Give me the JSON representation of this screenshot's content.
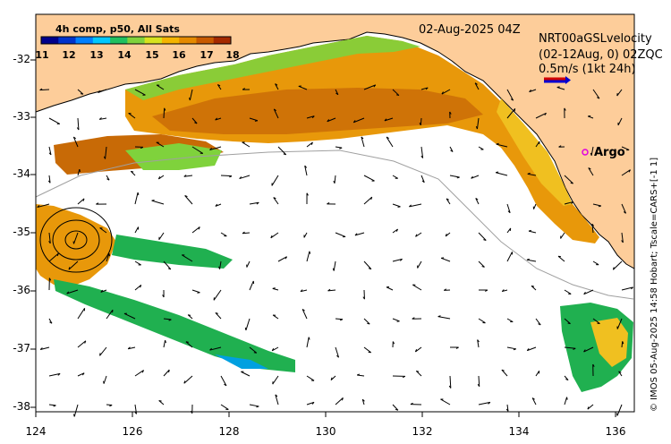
{
  "header": {
    "datestamp": "02-Aug-2025 04Z",
    "colorbar_title": "4h comp, p50, All Sats"
  },
  "colorbar": {
    "ticks": [
      "11",
      "12",
      "13",
      "14",
      "15",
      "16",
      "17",
      "18"
    ],
    "colors": [
      "#00008b",
      "#0033cc",
      "#0080ff",
      "#00c8ff",
      "#20c060",
      "#7fd23c",
      "#d7e21e",
      "#f4b400",
      "#e58a00",
      "#c85a00",
      "#a52a00"
    ]
  },
  "velocity_legend": {
    "line1": "NRT00aGSLvelocity",
    "line2": "(02-12Aug, 0) 02ZQC",
    "line3": "0.5m/s (1kt 24h)"
  },
  "argo": {
    "label": "Argo",
    "color": "#e000e0"
  },
  "axes": {
    "x_ticks": [
      "124",
      "126",
      "128",
      "130",
      "132",
      "134",
      "136"
    ],
    "y_ticks": [
      "-32",
      "-33",
      "-34",
      "-35",
      "-36",
      "-37",
      "-38"
    ],
    "x_range": [
      124,
      136.6
    ],
    "y_range": [
      -38.1,
      -31.3
    ]
  },
  "colors": {
    "land": "#fdcd9a",
    "ocean": "#ffffff",
    "warm": "#e8980a",
    "warmer": "#c86a06",
    "mid": "#f0c020",
    "cool": "#7fd23c",
    "cooler": "#20b050"
  },
  "credit": "© IMOS 05-Aug-2025 14:58 Hobart; Tscale=CARS+[-1 1]"
}
